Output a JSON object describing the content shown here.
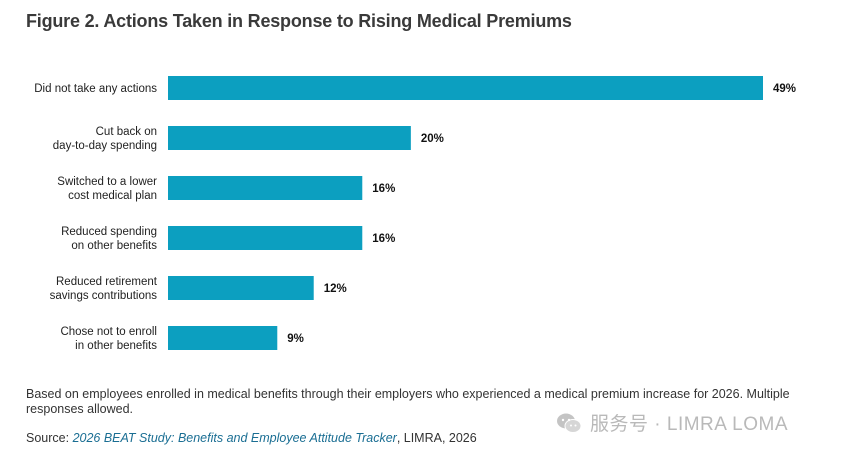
{
  "title": "Figure 2. Actions Taken in Response to Rising Medical Premiums",
  "colors": {
    "bar": "#0c9fc0",
    "label": "#222222",
    "value": "#111111"
  },
  "chart_data": {
    "type": "bar",
    "orientation": "horizontal",
    "title": "Figure 2. Actions Taken in Response to Rising Medical Premiums",
    "categories": [
      [
        "Did not take any actions"
      ],
      [
        "Cut back on",
        "day-to-day spending"
      ],
      [
        "Switched to a lower",
        "cost medical plan"
      ],
      [
        "Reduced spending",
        "on other benefits"
      ],
      [
        "Reduced retirement",
        "savings contributions"
      ],
      [
        "Chose not to enroll",
        "in other benefits"
      ]
    ],
    "values": [
      49,
      20,
      16,
      16,
      12,
      9
    ],
    "value_labels": [
      "49%",
      "20%",
      "16%",
      "16%",
      "12%",
      "9%"
    ],
    "unit": "%",
    "xlim": [
      0,
      49
    ],
    "grid": false,
    "legend": "none"
  },
  "note": "Based on employees enrolled in medical benefits through their employers who experienced a medical premium increase for 2026. Multiple responses allowed.",
  "source": {
    "prefix": "Source: ",
    "title": "2026 BEAT Study: Benefits and Employee Attitude Tracker",
    "suffix": ", LIMRA, 2026"
  },
  "watermark": {
    "text": "服务号 · LIMRA LOMA",
    "icon": "wechat-logo-icon"
  }
}
